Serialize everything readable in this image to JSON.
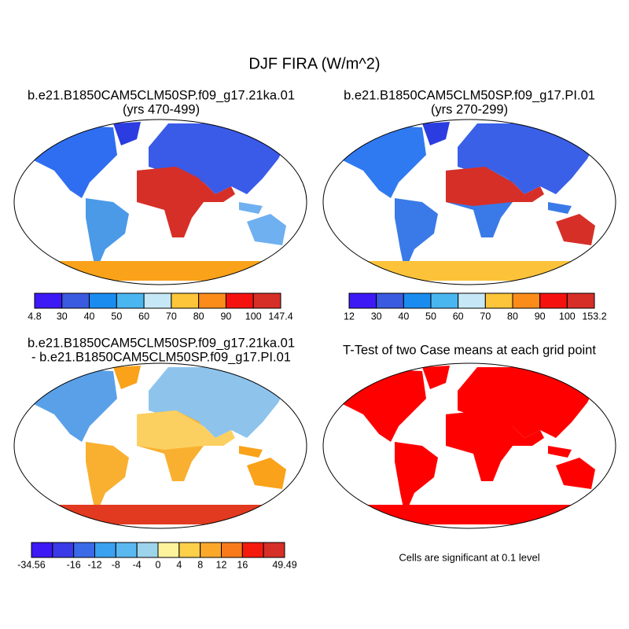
{
  "title": "DJF FIRA (W/m^2)",
  "panels": [
    {
      "title_lines": [
        "b.e21.B1850CAM5CLM50SP.f09_g17.21ka.01",
        "(yrs 470-499)"
      ],
      "colorbar": {
        "colors": [
          "#3c19f5",
          "#3a5ae0",
          "#1a8cf0",
          "#4ab6f0",
          "#c6e8f6",
          "#fcc53a",
          "#fb8c1a",
          "#f5120e",
          "#d62f27"
        ],
        "labels": [
          "4.8",
          "30",
          "40",
          "50",
          "60",
          "70",
          "80",
          "90",
          "100",
          "147.4"
        ]
      }
    },
    {
      "title_lines": [
        "b.e21.B1850CAM5CLM50SP.f09_g17.PI.01",
        "(yrs 270-299)"
      ],
      "colorbar": {
        "colors": [
          "#3c19f5",
          "#3a5ae0",
          "#1a8cf0",
          "#4ab6f0",
          "#c6e8f6",
          "#fcc53a",
          "#fb8c1a",
          "#f5120e",
          "#d62f27"
        ],
        "labels": [
          "12",
          "30",
          "40",
          "50",
          "60",
          "70",
          "80",
          "90",
          "100",
          "153.2"
        ]
      }
    },
    {
      "title_lines": [
        "b.e21.B1850CAM5CLM50SP.f09_g17.21ka.01",
        "- b.e21.B1850CAM5CLM50SP.f09_g17.PI.01"
      ],
      "colorbar": {
        "colors": [
          "#3c19f5",
          "#3a3ae8",
          "#3a6ae8",
          "#3aa0f0",
          "#5ab8f0",
          "#9ed3ec",
          "#fdf39c",
          "#fdd04a",
          "#fba82a",
          "#f87a1a",
          "#f51a0e",
          "#d62f27"
        ],
        "labels": [
          "-34.56",
          null,
          "-16",
          "-12",
          "-8",
          "-4",
          "0",
          "4",
          "8",
          "12",
          "16",
          null,
          "49.49"
        ]
      }
    },
    {
      "title_lines": [
        "T-Test of two Case means at each grid point"
      ]
    }
  ],
  "note": "Cells are significant at 0.1 level"
}
